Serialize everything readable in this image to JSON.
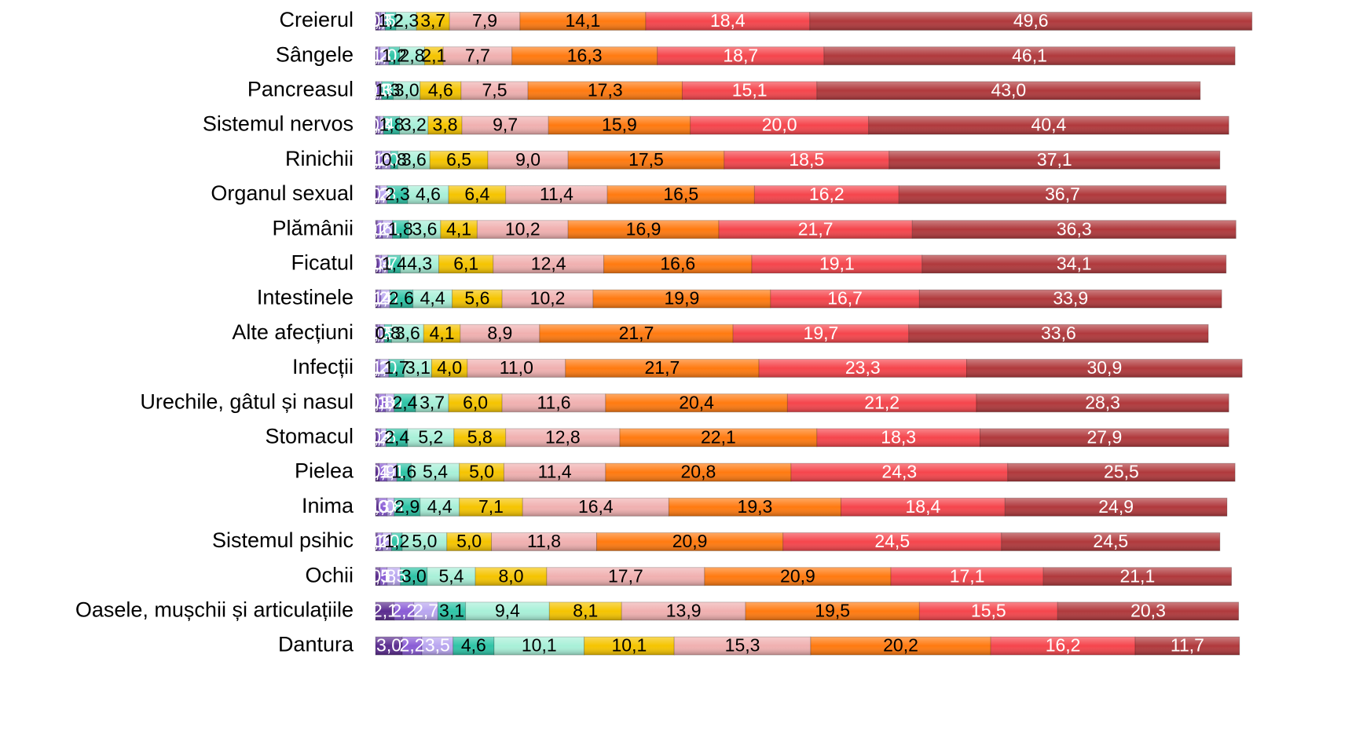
{
  "chart_data": {
    "type": "stacked-bar-horizontal",
    "categories": [
      "Creierul",
      "Sângele",
      "Pancreasul",
      "Sistemul nervos",
      "Rinichii",
      "Organul sexual",
      "Plămânii",
      "Ficatul",
      "Intestinele",
      "Alte afecțiuni",
      "Infecții",
      "Urechile, gâtul și nasul",
      "Stomacul",
      "Pielea",
      "Inima",
      "Sistemul psihic",
      "Ochii",
      "Oasele, mușchii și articulațiile",
      "Dantura"
    ],
    "series": [
      {
        "color": "#5b2c8f",
        "label_color": "#ffffff",
        "values": [
          0.3,
          0.2,
          0.1,
          0.2,
          0.2,
          0.2,
          0.2,
          0.3,
          0.2,
          0.2,
          0.2,
          0.3,
          0.2,
          0.4,
          0.3,
          0.2,
          0.5,
          2.1,
          3.0
        ],
        "value_labels": [
          "0,3",
          "0,2",
          "0,1",
          "0,2",
          "0,2",
          "0,2",
          "0,2",
          "0,3",
          "0,2",
          "0,2",
          "0,2",
          "0,3",
          "0,2",
          "0,4",
          "0,3",
          "0,2",
          "0,5",
          "2,1",
          "3,0"
        ]
      },
      {
        "color": "#8a5cd6",
        "label_color": "#ffffff",
        "values": [
          0.3,
          0.3,
          0.3,
          0.3,
          0.5,
          0.3,
          0.6,
          0.4,
          0.4,
          0.3,
          0.3,
          0.8,
          0.4,
          0.9,
          1.0,
          0.6,
          0.8,
          2.2,
          2.2
        ],
        "value_labels": [
          "0,3",
          "0,3",
          "0,3",
          "0,3",
          "0,5",
          "0,3",
          "0,6",
          "0,4",
          "0,4",
          "0,3",
          "0,3",
          "0,8",
          "0,4",
          "0,9",
          "1,0",
          "0,6",
          "0,8",
          "2,2",
          "2,2"
        ]
      },
      {
        "color": "#b9a6f0",
        "label_color": "#ffffff",
        "values": [
          0.5,
          1.0,
          0.3,
          0.4,
          1.0,
          0.8,
          1.1,
          0.7,
          1.0,
          0.5,
          1.0,
          1.0,
          0.6,
          1.1,
          0.8,
          1.0,
          1.5,
          2.7,
          3.5
        ],
        "value_labels": [
          "0,5",
          "1,0",
          "0,3",
          "0,4",
          "1,0",
          "0,8",
          "1,1",
          "0,7",
          "1,0",
          "0,5",
          "1,0",
          "1,0",
          "0,6",
          "1,1",
          "0,8",
          "1,0",
          "1,5",
          "2,7",
          "3,5"
        ]
      },
      {
        "color": "#2ec4a6",
        "label_color": "#000000",
        "values": [
          1.2,
          1.2,
          1.3,
          1.8,
          0.8,
          2.3,
          1.8,
          1.4,
          2.6,
          0.8,
          1.7,
          2.4,
          2.4,
          1.6,
          2.9,
          1.2,
          3.0,
          3.1,
          4.6
        ],
        "value_labels": [
          "1,2",
          "1,2",
          "1,3",
          "1,8",
          "0,8",
          "2,3",
          "1,8",
          "1,4",
          "2,6",
          "0,8",
          "1,7",
          "2,4",
          "2,4",
          "1,6",
          "2,9",
          "1,2",
          "3,0",
          "3,1",
          "4,6"
        ]
      },
      {
        "color": "#a8f0d8",
        "label_color": "#000000",
        "values": [
          2.3,
          2.8,
          3.0,
          3.2,
          3.6,
          4.6,
          3.6,
          4.3,
          4.4,
          3.6,
          3.1,
          3.7,
          5.2,
          5.4,
          4.4,
          5.0,
          5.4,
          9.4,
          10.1
        ],
        "value_labels": [
          "2,3",
          "2,8",
          "3,0",
          "3,2",
          "3,6",
          "4,6",
          "3,6",
          "4,3",
          "4,4",
          "3,6",
          "3,1",
          "3,7",
          "5,2",
          "5,4",
          "4,4",
          "5,0",
          "5,4",
          "9,4",
          "10,1"
        ]
      },
      {
        "color": "#f5c400",
        "label_color": "#000000",
        "values": [
          3.7,
          2.1,
          4.6,
          3.8,
          6.5,
          6.4,
          4.1,
          6.1,
          5.6,
          4.1,
          4.0,
          6.0,
          5.8,
          5.0,
          7.1,
          5.0,
          8.0,
          8.1,
          10.1
        ],
        "value_labels": [
          "3,7",
          "2,1",
          "4,6",
          "3,8",
          "6,5",
          "6,4",
          "4,1",
          "6,1",
          "5,6",
          "4,1",
          "4,0",
          "6,0",
          "5,8",
          "5,0",
          "7,1",
          "5,0",
          "8,0",
          "8,1",
          "10,1"
        ]
      },
      {
        "color": "#f0b0b0",
        "label_color": "#000000",
        "values": [
          7.9,
          7.7,
          7.5,
          9.7,
          9.0,
          11.4,
          10.2,
          12.4,
          10.2,
          8.9,
          11.0,
          11.6,
          12.8,
          11.4,
          16.4,
          11.8,
          17.7,
          13.9,
          15.3
        ],
        "value_labels": [
          "7,9",
          "7,7",
          "7,5",
          "9,7",
          "9,0",
          "11,4",
          "10,2",
          "12,4",
          "10,2",
          "8,9",
          "11,0",
          "11,6",
          "12,8",
          "11,4",
          "16,4",
          "11,8",
          "17,7",
          "13,9",
          "15,3"
        ]
      },
      {
        "color": "#ff7a10",
        "label_color": "#000000",
        "values": [
          14.1,
          16.3,
          17.3,
          15.9,
          17.5,
          16.5,
          16.9,
          16.6,
          19.9,
          21.7,
          21.7,
          20.4,
          22.1,
          20.8,
          19.3,
          20.9,
          20.9,
          19.5,
          20.2
        ],
        "value_labels": [
          "14,1",
          "16,3",
          "17,3",
          "15,9",
          "17,5",
          "16,5",
          "16,9",
          "16,6",
          "19,9",
          "21,7",
          "21,7",
          "20,4",
          "22,1",
          "20,8",
          "19,3",
          "20,9",
          "20,9",
          "19,5",
          "20,2"
        ]
      },
      {
        "color": "#f5454c",
        "label_color": "#ffffff",
        "values": [
          18.4,
          18.7,
          15.1,
          20.0,
          18.5,
          16.2,
          21.7,
          19.1,
          16.7,
          19.7,
          23.3,
          21.2,
          18.3,
          24.3,
          18.4,
          24.5,
          17.1,
          15.5,
          16.2
        ],
        "value_labels": [
          "18,4",
          "18,7",
          "15,1",
          "20,0",
          "18,5",
          "16,2",
          "21,7",
          "19,1",
          "16,7",
          "19,7",
          "23,3",
          "21,2",
          "18,3",
          "24,3",
          "18,4",
          "24,5",
          "17,1",
          "15,5",
          "16,2"
        ]
      },
      {
        "color": "#b0393c",
        "label_color": "#ffffff",
        "values": [
          49.6,
          46.1,
          43.0,
          40.4,
          37.1,
          36.7,
          36.3,
          34.1,
          33.9,
          33.6,
          30.9,
          28.3,
          27.9,
          25.5,
          24.9,
          24.5,
          21.1,
          20.3,
          11.7
        ],
        "value_labels": [
          "49,6",
          "46,1",
          "43,0",
          "40,4",
          "37,1",
          "36,7",
          "36,3",
          "34,1",
          "33,9",
          "33,6",
          "30,9",
          "28,3",
          "27,9",
          "25,5",
          "24,9",
          "24,5",
          "21,1",
          "20,3",
          "11,7"
        ]
      }
    ]
  }
}
